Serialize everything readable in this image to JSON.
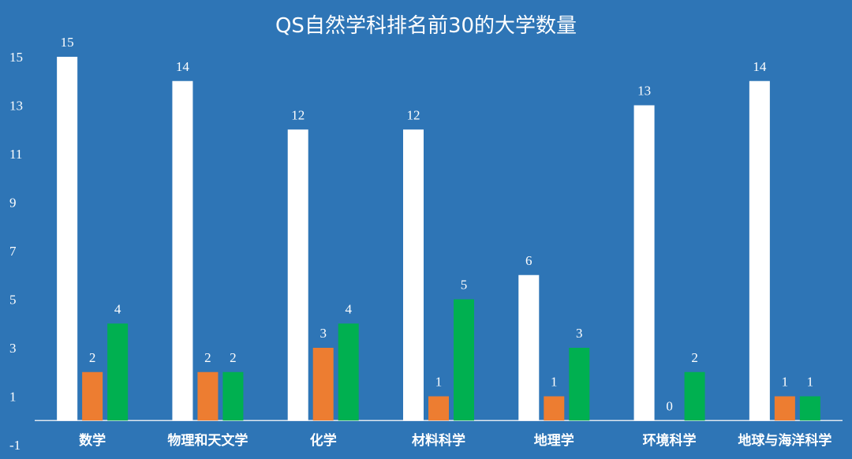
{
  "chart_data": {
    "type": "bar",
    "title": "QS自然学科排名前30的大学数量",
    "categories": [
      "数学",
      "物理和天文学",
      "化学",
      "材料科学",
      "地理学",
      "环境科学",
      "地球与海洋科学"
    ],
    "series": [
      {
        "color": "#FFFFFF",
        "values": [
          15,
          14,
          12,
          12,
          6,
          13,
          14
        ]
      },
      {
        "color": "#ED7D31",
        "values": [
          2,
          2,
          3,
          1,
          1,
          0,
          1
        ]
      },
      {
        "color": "#00B050",
        "values": [
          4,
          2,
          4,
          5,
          3,
          2,
          1
        ]
      }
    ],
    "yticks": [
      -1,
      1,
      3,
      5,
      7,
      9,
      11,
      13,
      15
    ],
    "ylim": [
      -1,
      15
    ],
    "grid": false,
    "legend": false,
    "data_labels": true
  },
  "colors": {
    "background": "#2E75B6",
    "text": "#FFFFFF",
    "axis_line": "#DDE6F0"
  }
}
